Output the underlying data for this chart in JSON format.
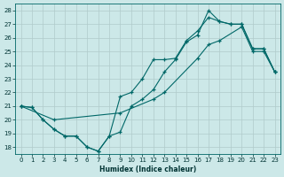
{
  "xlabel": "Humidex (Indice chaleur)",
  "bg_color": "#cce8e8",
  "grid_color": "#b0cbcb",
  "line_color": "#006868",
  "xlim": [
    -0.5,
    23.5
  ],
  "ylim": [
    17.5,
    28.5
  ],
  "xticks": [
    0,
    1,
    2,
    3,
    4,
    5,
    6,
    7,
    8,
    9,
    10,
    11,
    12,
    13,
    14,
    15,
    16,
    17,
    18,
    19,
    20,
    21,
    22,
    23
  ],
  "yticks": [
    18,
    19,
    20,
    21,
    22,
    23,
    24,
    25,
    26,
    27,
    28
  ],
  "line1_x": [
    0,
    1,
    2,
    3,
    4,
    5,
    6,
    7,
    8,
    9,
    10,
    11,
    12,
    13,
    14,
    15,
    16,
    17,
    18,
    19,
    20,
    21,
    22,
    23
  ],
  "line1_y": [
    21.0,
    20.9,
    20.0,
    19.3,
    18.8,
    18.8,
    18.0,
    17.7,
    18.8,
    19.1,
    21.0,
    21.5,
    22.2,
    23.5,
    24.4,
    25.7,
    26.2,
    28.0,
    27.2,
    27.0,
    27.0,
    25.2,
    25.2,
    23.5
  ],
  "line2_x": [
    0,
    1,
    2,
    3,
    4,
    5,
    6,
    7,
    8,
    9,
    10,
    11,
    12,
    13,
    14,
    15,
    16,
    17,
    18,
    19,
    20,
    21,
    22,
    23
  ],
  "line2_y": [
    21.0,
    20.9,
    20.0,
    19.3,
    18.8,
    18.8,
    18.0,
    17.7,
    18.8,
    21.7,
    22.0,
    23.0,
    24.4,
    24.4,
    24.5,
    25.8,
    26.5,
    27.5,
    27.2,
    27.0,
    27.0,
    25.2,
    25.2,
    23.5
  ],
  "line3_x": [
    0,
    3,
    9,
    12,
    13,
    16,
    17,
    18,
    20,
    21,
    22,
    23
  ],
  "line3_y": [
    21.0,
    20.0,
    20.5,
    21.5,
    22.0,
    24.5,
    25.5,
    25.8,
    26.8,
    25.0,
    25.0,
    23.5
  ]
}
